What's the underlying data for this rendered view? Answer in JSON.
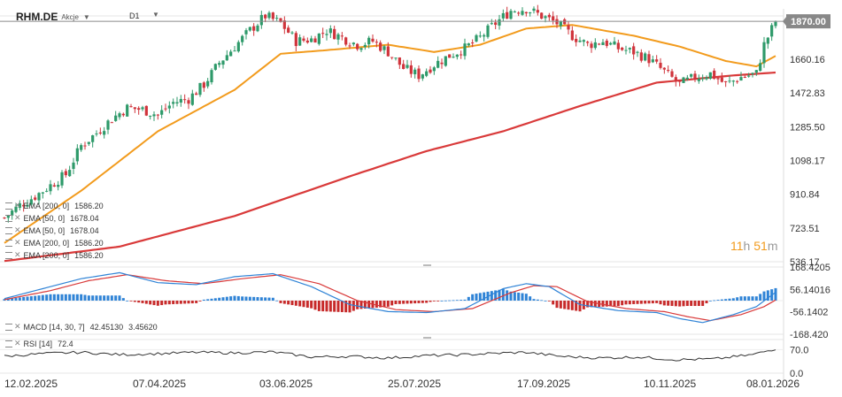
{
  "header": {
    "symbol": "RHM.DE",
    "asset_type": "Akcje",
    "timeframe": "D1"
  },
  "indicators": [
    {
      "label": "EMA [200, 0]",
      "value": "1586.20"
    },
    {
      "label": "EMA [50, 0]",
      "value": "1678.04"
    },
    {
      "label": "EMA [50, 0]",
      "value": "1678.04"
    },
    {
      "label": "EMA [200, 0]",
      "value": "1586.20"
    },
    {
      "label": "EMA [200, 0]",
      "value": "1586.20"
    }
  ],
  "macd_label": {
    "label": "MACD [14, 30, 7]",
    "v1": "42.45130",
    "v2": "3.45620"
  },
  "rsi_label": {
    "label": "RSI [14]",
    "value": "72.4"
  },
  "countdown": {
    "h": "11",
    "h_unit": "h",
    "m": "51",
    "m_unit": "m"
  },
  "colors": {
    "up": "#2e9a6a",
    "down": "#d0343c",
    "ema50": "#f29b1d",
    "ema200": "#d93a3a",
    "macd_line": "#2f83d6",
    "signal_line": "#d93a3a",
    "hist_up": "#2f83d6",
    "hist_down": "#c72a2a",
    "rsi_line": "#333333",
    "price_label_bg": "#888888"
  },
  "chart_data": [
    {
      "type": "candlestick",
      "x_labels": [
        "12.02.2025",
        "07.04.2025",
        "03.06.2025",
        "25.07.2025",
        "17.09.2025",
        "10.11.2025",
        "08.01.2026"
      ],
      "y_ticks": [
        "1870.00",
        "1660.16",
        "1472.83",
        "1285.50",
        "1098.17",
        "910.84",
        "723.51",
        "536.17"
      ],
      "ylim": [
        536.17,
        1900
      ],
      "last_price": "1870.00",
      "price_anchors": [
        [
          0,
          780
        ],
        [
          4,
          850
        ],
        [
          8,
          900
        ],
        [
          12,
          960
        ],
        [
          16,
          1020
        ],
        [
          20,
          1180
        ],
        [
          24,
          1250
        ],
        [
          28,
          1330
        ],
        [
          32,
          1390
        ],
        [
          36,
          1380
        ],
        [
          40,
          1350
        ],
        [
          44,
          1420
        ],
        [
          48,
          1440
        ],
        [
          52,
          1520
        ],
        [
          56,
          1640
        ],
        [
          60,
          1730
        ],
        [
          64,
          1820
        ],
        [
          68,
          1900
        ],
        [
          72,
          1860
        ],
        [
          76,
          1760
        ],
        [
          80,
          1770
        ],
        [
          84,
          1820
        ],
        [
          88,
          1780
        ],
        [
          92,
          1740
        ],
        [
          96,
          1760
        ],
        [
          100,
          1700
        ],
        [
          104,
          1610
        ],
        [
          108,
          1570
        ],
        [
          112,
          1630
        ],
        [
          116,
          1680
        ],
        [
          120,
          1720
        ],
        [
          124,
          1780
        ],
        [
          128,
          1860
        ],
        [
          132,
          1930
        ],
        [
          136,
          1940
        ],
        [
          140,
          1900
        ],
        [
          144,
          1860
        ],
        [
          148,
          1790
        ],
        [
          152,
          1740
        ],
        [
          156,
          1760
        ],
        [
          160,
          1720
        ],
        [
          164,
          1700
        ],
        [
          168,
          1660
        ],
        [
          172,
          1590
        ],
        [
          176,
          1520
        ],
        [
          180,
          1560
        ],
        [
          184,
          1580
        ],
        [
          188,
          1520
        ],
        [
          192,
          1560
        ],
        [
          196,
          1580
        ],
        [
          198,
          1740
        ],
        [
          201,
          1870
        ]
      ],
      "ema50_anchors": [
        [
          0,
          640
        ],
        [
          20,
          930
        ],
        [
          40,
          1260
        ],
        [
          60,
          1490
        ],
        [
          72,
          1690
        ],
        [
          84,
          1710
        ],
        [
          100,
          1740
        ],
        [
          112,
          1700
        ],
        [
          124,
          1740
        ],
        [
          136,
          1830
        ],
        [
          148,
          1850
        ],
        [
          164,
          1790
        ],
        [
          176,
          1730
        ],
        [
          188,
          1650
        ],
        [
          196,
          1620
        ],
        [
          201,
          1678
        ]
      ],
      "ema200_anchors": [
        [
          0,
          540
        ],
        [
          30,
          620
        ],
        [
          60,
          790
        ],
        [
          90,
          1010
        ],
        [
          110,
          1150
        ],
        [
          130,
          1260
        ],
        [
          150,
          1400
        ],
        [
          170,
          1530
        ],
        [
          190,
          1570
        ],
        [
          201,
          1586
        ]
      ]
    },
    {
      "type": "macd",
      "params": "14, 30, 7",
      "ylim": [
        -168.42,
        168.42
      ],
      "y_ticks": [
        "168.4205",
        "56.14016",
        "-56.1402",
        "-168.420"
      ],
      "macd_anchors": [
        [
          0,
          10
        ],
        [
          10,
          60
        ],
        [
          20,
          110
        ],
        [
          30,
          140
        ],
        [
          40,
          90
        ],
        [
          50,
          80
        ],
        [
          60,
          120
        ],
        [
          70,
          135
        ],
        [
          80,
          70
        ],
        [
          90,
          -20
        ],
        [
          100,
          -55
        ],
        [
          110,
          -60
        ],
        [
          120,
          -40
        ],
        [
          130,
          60
        ],
        [
          136,
          85
        ],
        [
          142,
          70
        ],
        [
          150,
          -20
        ],
        [
          160,
          -50
        ],
        [
          170,
          -60
        ],
        [
          176,
          -90
        ],
        [
          182,
          -110
        ],
        [
          190,
          -70
        ],
        [
          196,
          -30
        ],
        [
          201,
          42
        ]
      ],
      "signal_anchors": [
        [
          0,
          5
        ],
        [
          12,
          50
        ],
        [
          22,
          100
        ],
        [
          32,
          130
        ],
        [
          42,
          100
        ],
        [
          52,
          85
        ],
        [
          62,
          110
        ],
        [
          72,
          130
        ],
        [
          82,
          85
        ],
        [
          92,
          0
        ],
        [
          102,
          -45
        ],
        [
          112,
          -55
        ],
        [
          122,
          -40
        ],
        [
          132,
          40
        ],
        [
          138,
          75
        ],
        [
          144,
          70
        ],
        [
          152,
          -5
        ],
        [
          162,
          -40
        ],
        [
          172,
          -55
        ],
        [
          178,
          -80
        ],
        [
          184,
          -100
        ],
        [
          192,
          -70
        ],
        [
          198,
          -30
        ],
        [
          201,
          3
        ]
      ]
    },
    {
      "type": "rsi",
      "period": 14,
      "ylim": [
        0,
        100
      ],
      "y_ticks": [
        "70.0",
        "0.0"
      ],
      "rsi_anchors": [
        [
          0,
          50
        ],
        [
          10,
          58
        ],
        [
          20,
          62
        ],
        [
          30,
          55
        ],
        [
          40,
          58
        ],
        [
          50,
          62
        ],
        [
          60,
          60
        ],
        [
          70,
          63
        ],
        [
          80,
          48
        ],
        [
          90,
          50
        ],
        [
          100,
          45
        ],
        [
          110,
          52
        ],
        [
          120,
          55
        ],
        [
          130,
          60
        ],
        [
          136,
          62
        ],
        [
          145,
          50
        ],
        [
          155,
          45
        ],
        [
          165,
          48
        ],
        [
          175,
          40
        ],
        [
          185,
          42
        ],
        [
          195,
          55
        ],
        [
          201,
          72.4
        ]
      ]
    }
  ]
}
